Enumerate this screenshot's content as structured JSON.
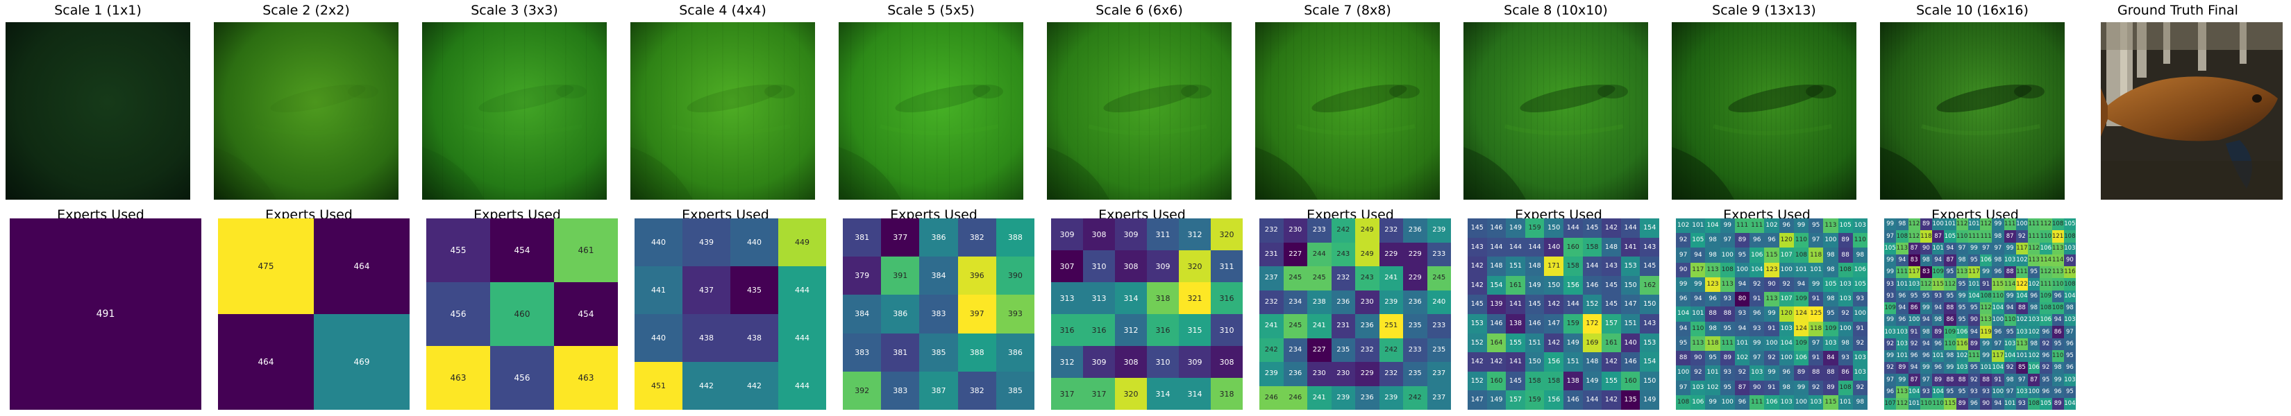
{
  "row_top_titles": [
    "Scale 1 (1x1)",
    "Scale 2 (2x2)",
    "Scale 3 (3x3)",
    "Scale 4 (4x4)",
    "Scale 5 (5x5)",
    "Scale 6 (6x6)",
    "Scale 7 (8x8)",
    "Scale 8 (10x10)",
    "Scale 9 (13x13)",
    "Scale 10 (16x16)",
    "Ground Truth Final"
  ],
  "row_bottom_title": "Experts Used",
  "colormap": "viridis",
  "panels": [
    {
      "scale": 1,
      "grid": 1,
      "image": {
        "base": "#0f2a12",
        "light": "#163a19",
        "dark": "#06150a",
        "detail": 0
      },
      "experts": [
        [
          491
        ]
      ]
    },
    {
      "scale": 2,
      "grid": 2,
      "image": {
        "base": "#2c6e12",
        "light": "#4f9c1f",
        "dark": "#0c2a06",
        "detail": 0.1
      },
      "experts": [
        [
          475,
          464
        ],
        [
          464,
          469
        ]
      ]
    },
    {
      "scale": 3,
      "grid": 3,
      "image": {
        "base": "#247a16",
        "light": "#43a626",
        "dark": "#0d3409",
        "detail": 0.2
      },
      "experts": [
        [
          455,
          454,
          461
        ],
        [
          456,
          460,
          454
        ],
        [
          463,
          456,
          463
        ]
      ]
    },
    {
      "scale": 4,
      "grid": 4,
      "image": {
        "base": "#2f8316",
        "light": "#4fae25",
        "dark": "#113a08",
        "detail": 0.3
      },
      "experts": [
        [
          440,
          439,
          440,
          449
        ],
        [
          441,
          437,
          435,
          444
        ],
        [
          440,
          438,
          438,
          444
        ],
        [
          451,
          442,
          442,
          444
        ]
      ]
    },
    {
      "scale": 5,
      "grid": 5,
      "image": {
        "base": "#2d8a18",
        "light": "#47b226",
        "dark": "#113f0a",
        "detail": 0.4
      },
      "experts": [
        [
          381,
          377,
          386,
          382,
          388
        ],
        [
          379,
          391,
          384,
          396,
          390
        ],
        [
          384,
          386,
          383,
          397,
          393
        ],
        [
          383,
          381,
          385,
          388,
          386
        ],
        [
          392,
          383,
          387,
          382,
          385
        ]
      ]
    },
    {
      "scale": 6,
      "grid": 6,
      "image": {
        "base": "#2b7d16",
        "light": "#45a322",
        "dark": "#0f3508",
        "detail": 0.5
      },
      "experts": [
        [
          309,
          308,
          309,
          311,
          312,
          320
        ],
        [
          307,
          310,
          308,
          309,
          320,
          311
        ],
        [
          313,
          313,
          314,
          318,
          321,
          316
        ],
        [
          316,
          316,
          312,
          316,
          315,
          310
        ],
        [
          312,
          309,
          308,
          310,
          309,
          308
        ],
        [
          317,
          317,
          320,
          314,
          314,
          318
        ]
      ]
    },
    {
      "scale": 7,
      "grid": 8,
      "image": {
        "base": "#2a7614",
        "light": "#43a020",
        "dark": "#0e3007",
        "detail": 0.65
      },
      "experts": [
        [
          232,
          230,
          233,
          242,
          249,
          232,
          236,
          239
        ],
        [
          231,
          227,
          244,
          243,
          249,
          229,
          229,
          233
        ],
        [
          237,
          245,
          245,
          232,
          243,
          241,
          229,
          245
        ],
        [
          232,
          234,
          238,
          236,
          230,
          239,
          236,
          240
        ],
        [
          241,
          245,
          241,
          231,
          236,
          251,
          235,
          233
        ],
        [
          242,
          234,
          227,
          235,
          232,
          242,
          233,
          235
        ],
        [
          239,
          236,
          230,
          230,
          229,
          232,
          235,
          237
        ],
        [
          246,
          246,
          241,
          239,
          236,
          239,
          242,
          237
        ]
      ]
    },
    {
      "scale": 8,
      "grid": 10,
      "image": {
        "base": "#27701a",
        "light": "#3f9a22",
        "dark": "#0c2c08",
        "detail": 0.8
      },
      "experts": [
        [
          145,
          146,
          149,
          159,
          150,
          144,
          145,
          142,
          144,
          154
        ],
        [
          143,
          144,
          144,
          144,
          140,
          160,
          158,
          148,
          141,
          143
        ],
        [
          142,
          148,
          151,
          148,
          171,
          158,
          144,
          143,
          153,
          145
        ],
        [
          142,
          154,
          161,
          149,
          150,
          156,
          146,
          145,
          150,
          162
        ],
        [
          145,
          139,
          141,
          145,
          142,
          144,
          152,
          145,
          147,
          150
        ],
        [
          153,
          146,
          138,
          146,
          147,
          159,
          172,
          157,
          151,
          143
        ],
        [
          152,
          164,
          155,
          151,
          142,
          149,
          169,
          161,
          140,
          153
        ],
        [
          142,
          142,
          141,
          150,
          156,
          151,
          148,
          142,
          146,
          154
        ],
        [
          152,
          160,
          145,
          158,
          158,
          138,
          149,
          155,
          160,
          150
        ],
        [
          147,
          149,
          157,
          159,
          156,
          146,
          144,
          142,
          135,
          149
        ]
      ]
    },
    {
      "scale": 9,
      "grid": 13,
      "image": {
        "base": "#1f6412",
        "light": "#3a8d1e",
        "dark": "#0a2606",
        "detail": 0.9
      },
      "experts": [
        [
          102,
          101,
          104,
          99,
          111,
          111,
          102,
          96,
          99,
          95,
          113,
          105,
          103
        ],
        [
          92,
          105,
          98,
          97,
          89,
          96,
          96,
          120,
          110,
          97,
          100,
          89,
          110
        ],
        [
          97,
          94,
          98,
          100,
          95,
          106,
          115,
          107,
          108,
          118,
          98,
          88,
          98
        ],
        [
          90,
          117,
          113,
          108,
          100,
          104,
          123,
          100,
          101,
          101,
          98,
          108,
          106
        ],
        [
          99,
          99,
          123,
          113,
          94,
          92,
          90,
          92,
          94,
          99,
          105,
          103,
          105
        ],
        [
          96,
          94,
          96,
          93,
          80,
          91,
          113,
          107,
          109,
          91,
          98,
          103,
          93
        ],
        [
          104,
          101,
          88,
          88,
          93,
          96,
          99,
          120,
          124,
          125,
          95,
          92,
          100
        ],
        [
          94,
          110,
          98,
          95,
          94,
          93,
          91,
          103,
          124,
          118,
          109,
          100,
          91
        ],
        [
          95,
          113,
          118,
          111,
          101,
          99,
          100,
          104,
          109,
          97,
          103,
          98,
          92
        ],
        [
          88,
          90,
          95,
          89,
          102,
          97,
          92,
          100,
          106,
          91,
          84,
          93,
          103
        ],
        [
          100,
          92,
          101,
          93,
          92,
          103,
          99,
          96,
          89,
          88,
          88,
          86,
          103
        ],
        [
          97,
          103,
          102,
          95,
          87,
          90,
          91,
          98,
          99,
          92,
          89,
          108,
          92
        ],
        [
          108,
          106,
          99,
          100,
          96,
          111,
          106,
          103,
          100,
          103,
          115,
          101,
          98
        ]
      ]
    },
    {
      "scale": 10,
      "grid": 16,
      "image": {
        "base": "#225f14",
        "light": "#3e8e22",
        "dark": "#0a2406",
        "detail": 1
      },
      "experts": [
        [
          99,
          98,
          112,
          89,
          100,
          101,
          112,
          101,
          112,
          99,
          111,
          100,
          111,
          112,
          108,
          105
        ],
        [
          97,
          108,
          112,
          118,
          87,
          105,
          110,
          111,
          111,
          98,
          87,
          92,
          111,
          110,
          121,
          108
        ],
        [
          105,
          113,
          87,
          90,
          101,
          94,
          97,
          99,
          97,
          97,
          99,
          117,
          112,
          106,
          113,
          103
        ],
        [
          99,
          94,
          83,
          98,
          94,
          87,
          98,
          95,
          106,
          98,
          103,
          102,
          113,
          114,
          114,
          90
        ],
        [
          99,
          111,
          117,
          83,
          109,
          95,
          113,
          117,
          99,
          96,
          88,
          111,
          95,
          112,
          113,
          116
        ],
        [
          93,
          101,
          103,
          112,
          115,
          112,
          95,
          101,
          91,
          115,
          114,
          122,
          102,
          111,
          110,
          108
        ],
        [
          93,
          96,
          95,
          95,
          93,
          95,
          99,
          104,
          108,
          110,
          99,
          104,
          96,
          109,
          96,
          104
        ],
        [
          109,
          94,
          86,
          99,
          94,
          88,
          95,
          95,
          112,
          104,
          94,
          88,
          98,
          108,
          108,
          98
        ],
        [
          99,
          96,
          100,
          94,
          98,
          86,
          95,
          90,
          113,
          100,
          110,
          102,
          103,
          106,
          94,
          103
        ],
        [
          103,
          103,
          91,
          98,
          89,
          109,
          106,
          94,
          119,
          96,
          95,
          103,
          102,
          96,
          86,
          97
        ],
        [
          92,
          103,
          92,
          94,
          96,
          110,
          116,
          89,
          99,
          97,
          103,
          113,
          98,
          92,
          95,
          96
        ],
        [
          99,
          101,
          96,
          96,
          101,
          98,
          102,
          111,
          99,
          117,
          104,
          101,
          102,
          96,
          110,
          95
        ],
        [
          92,
          89,
          94,
          99,
          96,
          99,
          103,
          95,
          101,
          104,
          92,
          85,
          106,
          92,
          98,
          96
        ],
        [
          97,
          99,
          87,
          97,
          89,
          88,
          88,
          92,
          88,
          91,
          98,
          97,
          87,
          95,
          99,
          103
        ],
        [
          96,
          113,
          104,
          93,
          104,
          95,
          95,
          93,
          93,
          100,
          97,
          103,
          100,
          96,
          96,
          95
        ],
        [
          107,
          112,
          101,
          110,
          110,
          115,
          89,
          96,
          90,
          94,
          101,
          93,
          108,
          105,
          89,
          104
        ]
      ]
    }
  ],
  "ground_truth": {
    "fish_colors": [
      "#b8732d",
      "#7a4416",
      "#3e220e"
    ],
    "background": "#2c2820"
  }
}
